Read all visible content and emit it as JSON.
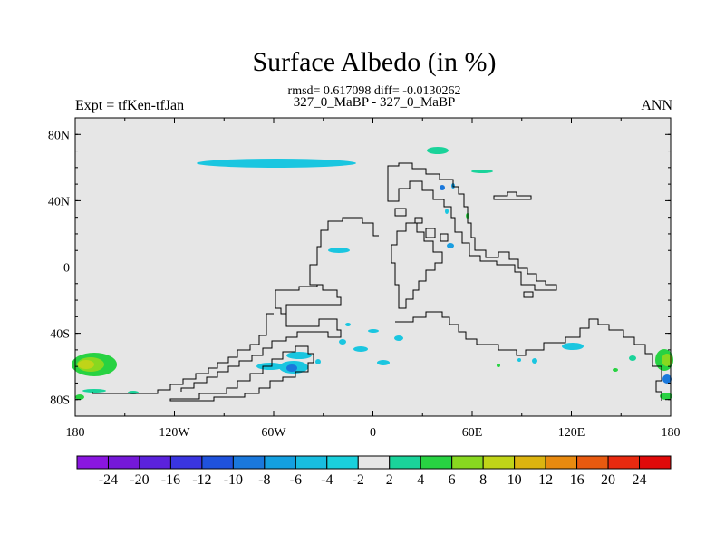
{
  "header": {
    "title": "Surface Albedo (in %)",
    "stats": "rmsd= 0.617098 diff= -0.0130262",
    "runs": "327_0_MaBP - 327_0_MaBP",
    "left_label": "Expt = tfKen-tfJan",
    "right_label": "ANN"
  },
  "map": {
    "projection": "cylindrical equidistant",
    "lon_range": [
      -180,
      180
    ],
    "lat_range": [
      -90,
      90
    ],
    "background_color": "#e6e6e6",
    "coastline_color": "#000000",
    "lat_ticks": [
      {
        "value": 80,
        "label": "80N"
      },
      {
        "value": 40,
        "label": "40N"
      },
      {
        "value": 0,
        "label": "0"
      },
      {
        "value": -40,
        "label": "40S"
      },
      {
        "value": -80,
        "label": "80S"
      }
    ],
    "lon_ticks": [
      {
        "value": -180,
        "label": "180"
      },
      {
        "value": -120,
        "label": "120W"
      },
      {
        "value": -60,
        "label": "60W"
      },
      {
        "value": 0,
        "label": "0"
      },
      {
        "value": 60,
        "label": "60E"
      },
      {
        "value": 120,
        "label": "120E"
      },
      {
        "value": 180,
        "label": "180"
      }
    ]
  },
  "colorbar": {
    "labels": [
      "-24",
      "-20",
      "-16",
      "-12",
      "-10",
      "-8",
      "-6",
      "-4",
      "-2",
      "2",
      "4",
      "6",
      "8",
      "10",
      "12",
      "16",
      "20",
      "24"
    ],
    "colors": [
      "#8a16e0",
      "#7518d8",
      "#5b22dc",
      "#3a35e0",
      "#1f52dc",
      "#1a78dc",
      "#14a0e0",
      "#18bde0",
      "#1ad0dc",
      "#e6e6e6",
      "#1ad39a",
      "#28d242",
      "#88d820",
      "#c0d418",
      "#dcb410",
      "#e88a10",
      "#e85a10",
      "#e82a10",
      "#e00a0a"
    ]
  }
}
